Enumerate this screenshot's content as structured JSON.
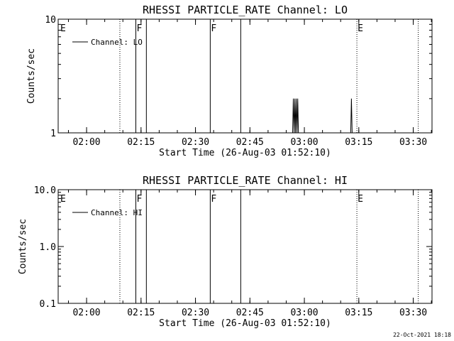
{
  "footer_timestamp": "22-Oct-2021 18:18",
  "chart_data": [
    {
      "type": "line",
      "title": "RHESSI PARTICLE_RATE Channel: LO",
      "xlabel": "Start Time (26-Aug-03 01:52:10)",
      "ylabel": "Counts/sec",
      "x_unit": "minutes after 01:52:10",
      "xlim": [
        0,
        103
      ],
      "ylim": [
        1,
        10
      ],
      "yscale": "log",
      "x_ticks": [
        {
          "at": 7.83,
          "label": "02:00"
        },
        {
          "at": 22.83,
          "label": "02:15"
        },
        {
          "at": 37.83,
          "label": "02:30"
        },
        {
          "at": 52.83,
          "label": "02:45"
        },
        {
          "at": 67.83,
          "label": "03:00"
        },
        {
          "at": 82.83,
          "label": "03:15"
        },
        {
          "at": 97.83,
          "label": "03:30"
        }
      ],
      "y_ticks": [
        {
          "at": 1,
          "label": "1"
        },
        {
          "at": 10,
          "label": "10"
        }
      ],
      "legend": {
        "entries": [
          "Channel: LO"
        ],
        "position": "top-left"
      },
      "grid": false,
      "event_markers": [
        {
          "x": 0.4,
          "label": "E",
          "style": "none"
        },
        {
          "x": 17.0,
          "label": "",
          "style": "dotted"
        },
        {
          "x": 21.4,
          "label": "F",
          "style": "solid"
        },
        {
          "x": 24.3,
          "label": "",
          "style": "solid"
        },
        {
          "x": 41.9,
          "label": "F",
          "style": "solid"
        },
        {
          "x": 50.3,
          "label": "",
          "style": "solid"
        },
        {
          "x": 82.3,
          "label": "E",
          "style": "dotted"
        },
        {
          "x": 99.2,
          "label": "",
          "style": "dotted"
        }
      ],
      "series": [
        {
          "name": "Channel: LO",
          "points": [
            [
              64.6,
              1
            ],
            [
              64.8,
              2
            ],
            [
              65.0,
              1
            ],
            [
              65.2,
              2
            ],
            [
              65.4,
              1
            ],
            [
              65.6,
              2
            ],
            [
              65.8,
              1
            ],
            [
              66.0,
              2
            ],
            [
              66.2,
              1
            ],
            [
              80.6,
              1
            ],
            [
              80.8,
              2
            ],
            [
              81.0,
              1
            ]
          ]
        }
      ]
    },
    {
      "type": "line",
      "title": "RHESSI PARTICLE_RATE Channel: HI",
      "xlabel": "Start Time (26-Aug-03 01:52:10)",
      "ylabel": "Counts/sec",
      "x_unit": "minutes after 01:52:10",
      "xlim": [
        0,
        103
      ],
      "ylim": [
        0.1,
        10
      ],
      "yscale": "log",
      "x_ticks": [
        {
          "at": 7.83,
          "label": "02:00"
        },
        {
          "at": 22.83,
          "label": "02:15"
        },
        {
          "at": 37.83,
          "label": "02:30"
        },
        {
          "at": 52.83,
          "label": "02:45"
        },
        {
          "at": 67.83,
          "label": "03:00"
        },
        {
          "at": 82.83,
          "label": "03:15"
        },
        {
          "at": 97.83,
          "label": "03:30"
        }
      ],
      "y_ticks": [
        {
          "at": 0.1,
          "label": "0.1"
        },
        {
          "at": 1,
          "label": "1.0"
        },
        {
          "at": 10,
          "label": "10.0"
        }
      ],
      "legend": {
        "entries": [
          "Channel: HI"
        ],
        "position": "top-left"
      },
      "grid": false,
      "event_markers": [
        {
          "x": 0.4,
          "label": "E",
          "style": "none"
        },
        {
          "x": 17.0,
          "label": "",
          "style": "dotted"
        },
        {
          "x": 21.4,
          "label": "F",
          "style": "solid"
        },
        {
          "x": 24.3,
          "label": "",
          "style": "solid"
        },
        {
          "x": 41.9,
          "label": "F",
          "style": "solid"
        },
        {
          "x": 50.3,
          "label": "",
          "style": "solid"
        },
        {
          "x": 82.3,
          "label": "E",
          "style": "dotted"
        },
        {
          "x": 99.2,
          "label": "",
          "style": "dotted"
        }
      ],
      "series": [
        {
          "name": "Channel: HI",
          "points": []
        }
      ]
    }
  ]
}
